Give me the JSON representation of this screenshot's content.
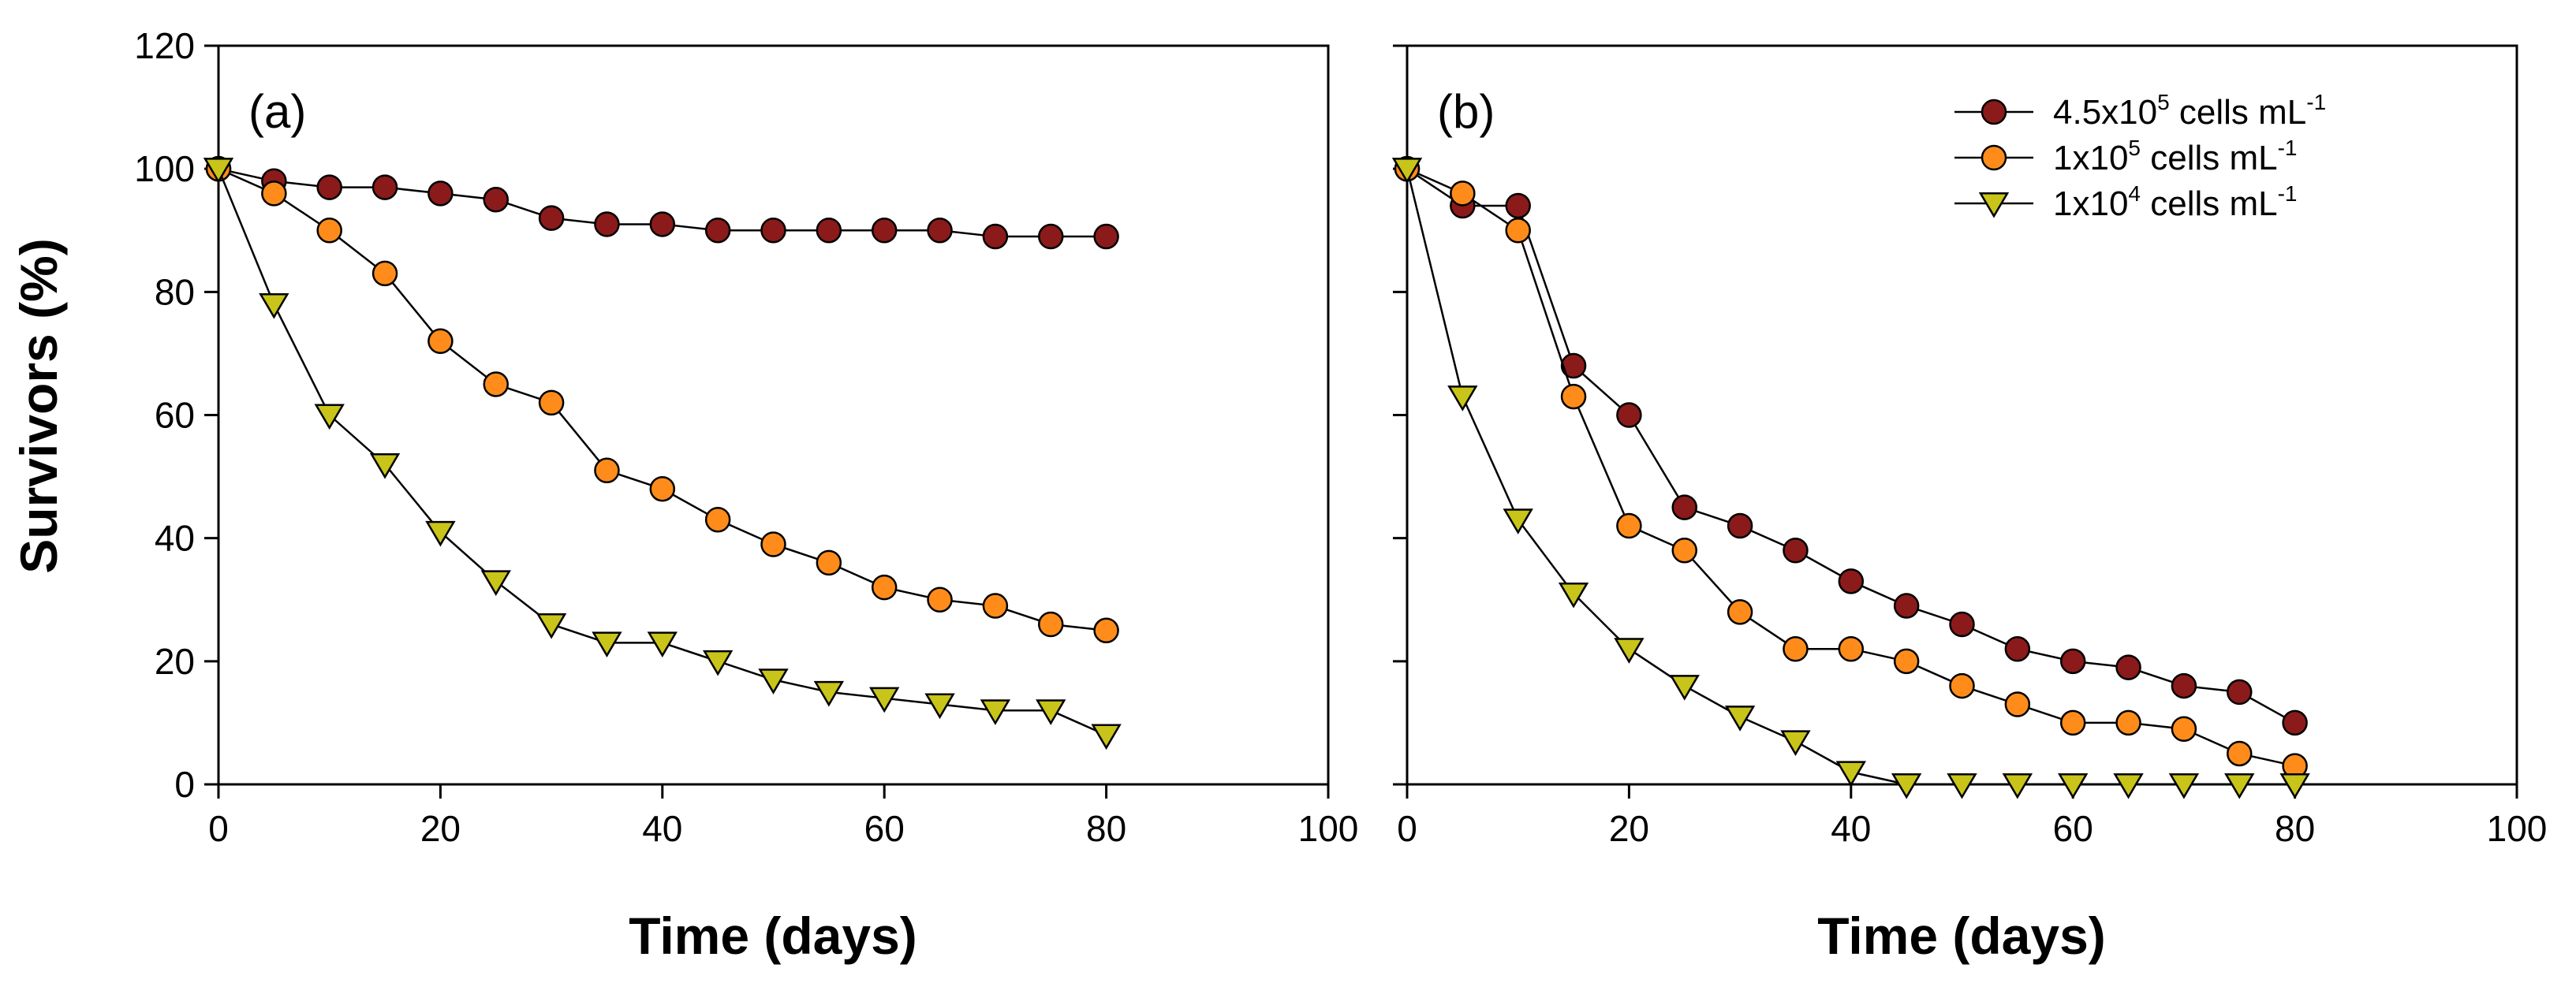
{
  "chart_data": [
    {
      "type": "line",
      "panel_label": "(a)",
      "xlabel": "Time (days)",
      "ylabel": "Survivors (%)",
      "xlim": [
        0,
        100
      ],
      "ylim": [
        0,
        120
      ],
      "xticks": [
        0,
        20,
        40,
        60,
        80,
        100
      ],
      "yticks": [
        0,
        20,
        40,
        60,
        80,
        100,
        120
      ],
      "series": [
        {
          "name": "4.5x10^5 cells mL^-1",
          "marker": "circle",
          "color": "#8b1a1a",
          "x": [
            0,
            5,
            10,
            15,
            20,
            25,
            30,
            35,
            40,
            45,
            50,
            55,
            60,
            65,
            70,
            75,
            80
          ],
          "y": [
            100,
            98,
            97,
            97,
            96,
            95,
            92,
            91,
            91,
            90,
            90,
            90,
            90,
            90,
            89,
            89,
            89
          ]
        },
        {
          "name": "1x10^5 cells mL^-1",
          "marker": "circle",
          "color": "#ff8c1a",
          "x": [
            0,
            5,
            10,
            15,
            20,
            25,
            30,
            35,
            40,
            45,
            50,
            55,
            60,
            65,
            70,
            75,
            80
          ],
          "y": [
            100,
            96,
            90,
            83,
            72,
            65,
            62,
            51,
            48,
            43,
            39,
            36,
            32,
            30,
            29,
            26,
            25
          ]
        },
        {
          "name": "1x10^4 cells mL^-1",
          "marker": "triangle-down",
          "color": "#c8c41a",
          "x": [
            0,
            5,
            10,
            15,
            20,
            25,
            30,
            35,
            40,
            45,
            50,
            55,
            60,
            65,
            70,
            75,
            80
          ],
          "y": [
            100,
            78,
            60,
            52,
            41,
            33,
            26,
            23,
            23,
            20,
            17,
            15,
            14,
            13,
            12,
            12,
            8
          ]
        }
      ]
    },
    {
      "type": "line",
      "panel_label": "(b)",
      "xlabel": "Time (days)",
      "ylabel": "",
      "xlim": [
        0,
        100
      ],
      "ylim": [
        0,
        120
      ],
      "xticks": [
        0,
        20,
        40,
        60,
        80,
        100
      ],
      "yticks": [
        0,
        20,
        40,
        60,
        80,
        100,
        120
      ],
      "legend_position": "top-right",
      "legend": [
        {
          "base": "4.5x10",
          "exp": "5",
          "mid": " cells mL",
          "exp2": "-1"
        },
        {
          "base": "1x10",
          "exp": "5",
          "mid": " cells mL",
          "exp2": "-1"
        },
        {
          "base": "1x10",
          "exp": "4",
          "mid": " cells mL",
          "exp2": "-1"
        }
      ],
      "series": [
        {
          "name": "4.5x10^5 cells mL^-1",
          "marker": "circle",
          "color": "#8b1a1a",
          "x": [
            0,
            5,
            10,
            15,
            20,
            25,
            30,
            35,
            40,
            45,
            50,
            55,
            60,
            65,
            70,
            75,
            80
          ],
          "y": [
            100,
            94,
            94,
            68,
            60,
            45,
            42,
            38,
            33,
            29,
            26,
            22,
            20,
            19,
            16,
            15,
            10
          ]
        },
        {
          "name": "1x10^5 cells mL^-1",
          "marker": "circle",
          "color": "#ff8c1a",
          "x": [
            0,
            5,
            10,
            15,
            20,
            25,
            30,
            35,
            40,
            45,
            50,
            55,
            60,
            65,
            70,
            75,
            80
          ],
          "y": [
            100,
            96,
            90,
            63,
            42,
            38,
            28,
            22,
            22,
            20,
            16,
            13,
            10,
            10,
            9,
            5,
            3
          ]
        },
        {
          "name": "1x10^4 cells mL^-1",
          "marker": "triangle-down",
          "color": "#c8c41a",
          "x": [
            0,
            5,
            10,
            15,
            20,
            25,
            30,
            35,
            40,
            45,
            50,
            55,
            60,
            65,
            70,
            75,
            80
          ],
          "y": [
            100,
            63,
            43,
            31,
            22,
            16,
            11,
            7,
            2,
            0,
            0,
            0,
            0,
            0,
            0,
            0,
            0
          ]
        }
      ]
    }
  ]
}
